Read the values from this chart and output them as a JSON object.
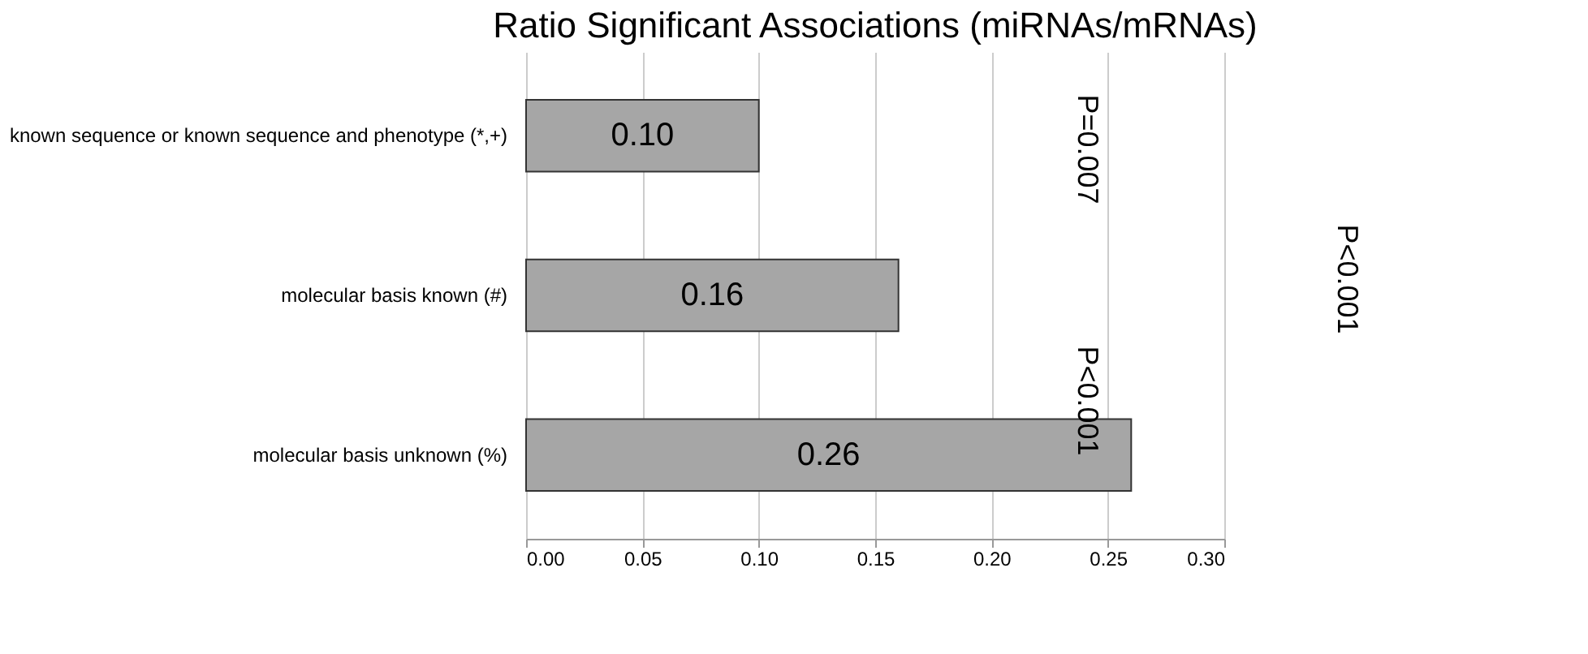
{
  "chart_data": {
    "type": "bar",
    "orientation": "horizontal",
    "title": "Ratio Significant Associations (miRNAs/mRNAs)",
    "categories": [
      "known sequence or known sequence and phenotype (*,+)",
      "molecular basis known (#)",
      "molecular basis unknown (%)"
    ],
    "values": [
      0.1,
      0.16,
      0.26
    ],
    "value_labels": [
      "0.10",
      "0.16",
      "0.26"
    ],
    "color": "#a6a6a6",
    "xlim": [
      0,
      0.3
    ],
    "xticks": [
      {
        "value": 0,
        "label": "0.00"
      },
      {
        "value": 0.05,
        "label": "0.05"
      },
      {
        "value": 0.1,
        "label": "0.10"
      },
      {
        "value": 0.15,
        "label": "0.15"
      },
      {
        "value": 0.2,
        "label": "0.20"
      },
      {
        "value": 0.25,
        "label": "0.25"
      },
      {
        "value": 0.3,
        "label": "0.30"
      }
    ],
    "grid": "x",
    "annotations": [
      "P=0.007",
      "P<0.001",
      "P<0.001"
    ]
  }
}
